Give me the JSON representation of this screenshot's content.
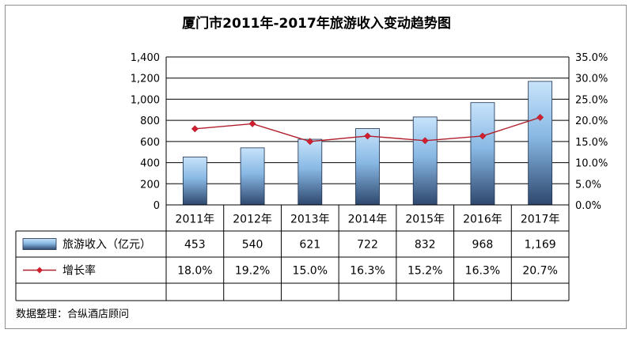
{
  "chart_data": {
    "type": "bar",
    "title": "厦门市2011年-2017年旅游收入变动趋势图",
    "categories": [
      "2011年",
      "2012年",
      "2013年",
      "2014年",
      "2015年",
      "2016年",
      "2017年"
    ],
    "series": [
      {
        "name": "旅游收入（亿元）",
        "type": "bar",
        "axis": "left",
        "values": [
          453,
          540,
          621,
          722,
          832,
          968,
          1169
        ],
        "labels": [
          "453",
          "540",
          "621",
          "722",
          "832",
          "968",
          "1,169"
        ]
      },
      {
        "name": "增长率",
        "type": "line",
        "axis": "right",
        "values": [
          18.0,
          19.2,
          15.0,
          16.3,
          15.2,
          16.3,
          20.7
        ],
        "labels": [
          "18.0%",
          "19.2%",
          "15.0%",
          "16.3%",
          "15.2%",
          "16.3%",
          "20.7%"
        ]
      }
    ],
    "yleft": {
      "min": 0,
      "max": 1400,
      "step": 200,
      "ticks": [
        "0",
        "200",
        "400",
        "600",
        "800",
        "1,000",
        "1,200",
        "1,400"
      ]
    },
    "yright": {
      "min": 0,
      "max": 35,
      "step": 5,
      "ticks": [
        "0.0%",
        "5.0%",
        "10.0%",
        "15.0%",
        "20.0%",
        "25.0%",
        "30.0%",
        "35.0%"
      ]
    },
    "grid": true,
    "legend": "data-table",
    "colors": {
      "bar_top": "#c7e3fa",
      "bar_mid": "#88b8e4",
      "bar_bottom": "#2e476d",
      "line": "#b01f2c",
      "marker": "#d21f30",
      "grid": "#000000"
    },
    "source": "数据整理：合纵酒店顾问"
  }
}
